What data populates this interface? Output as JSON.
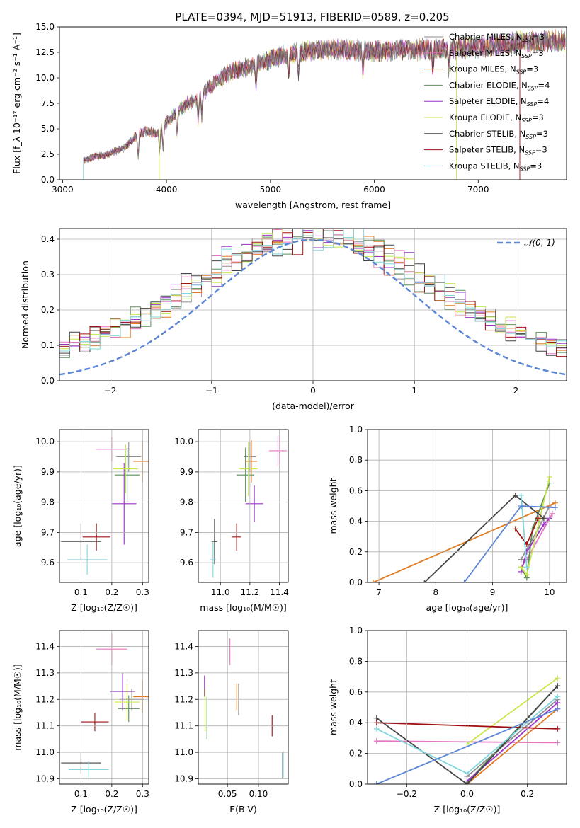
{
  "figure_title": "PLATE=0394, MJD=51913, FIBERID=0589, z=0.205",
  "colors": {
    "Chabrier MILES": "#8c8c8c",
    "Salpeter MILES": "#e377c2",
    "Kroupa MILES": "#e07b22",
    "Chabrier ELODIE": "#5b8f5b",
    "Salpeter ELODIE": "#9b30c8",
    "Kroupa ELODIE": "#c8e84a",
    "Chabrier STELIB": "#444444",
    "Salpeter STELIB": "#a01010",
    "Kroupa STELIB": "#7fd6dc",
    "Normal": "#5b86d6"
  },
  "chart_data": [
    {
      "id": "spectrum",
      "type": "line",
      "title": "PLATE=0394, MJD=51913, FIBERID=0589, z=0.205",
      "xlabel": "wavelength [Angstrom, rest frame]",
      "ylabel": "Flux [f_λ 10⁻¹⁷ erg cm⁻² s⁻¹ A⁻¹]",
      "xlim": [
        2970,
        7850
      ],
      "ylim": [
        0,
        15
      ],
      "xticks": [
        "3000",
        "4000",
        "5000",
        "6000",
        "7000"
      ],
      "yticks": [
        "0.0",
        "2.5",
        "5.0",
        "7.5",
        "10.0",
        "12.5",
        "15.0"
      ],
      "grid": false,
      "legend_position": "right",
      "legend": [
        "Chabrier MILES, N_SSP=3",
        "Salpeter MILES, N_SSP=3",
        "Kroupa MILES, N_SSP=3",
        "Chabrier ELODIE, N_SSP=4",
        "Salpeter ELODIE, N_SSP=4",
        "Kroupa ELODIE, N_SSP=3",
        "Chabrier STELIB, N_SSP=3",
        "Salpeter STELIB, N_SSP=3",
        "Kroupa STELIB, N_SSP=3"
      ],
      "continuum": {
        "x": [
          3200,
          3300,
          3400,
          3500,
          3600,
          3700,
          3800,
          3900,
          4000,
          4100,
          4200,
          4300,
          4400,
          4600,
          4800,
          5000,
          5200,
          5400,
          5600,
          5800,
          6000,
          6200,
          6400,
          6600,
          6800,
          7000,
          7200,
          7400,
          7800
        ],
        "y": [
          1.8,
          2.3,
          2.4,
          2.8,
          3.2,
          4.2,
          4.8,
          4.5,
          5.6,
          6.7,
          7.5,
          7.9,
          9.0,
          10.5,
          11.1,
          11.9,
          12.4,
          12.7,
          12.8,
          12.7,
          12.6,
          12.7,
          12.8,
          12.8,
          12.9,
          13.0,
          13.2,
          13.5,
          13.6
        ]
      }
    },
    {
      "id": "residuals",
      "type": "step-histogram",
      "xlabel": "(data-model)/error",
      "ylabel": "Normed distribution",
      "xlim": [
        -2.5,
        2.5
      ],
      "ylim": [
        0,
        0.43
      ],
      "xticks": [
        "−2",
        "−1",
        "0",
        "1",
        "2"
      ],
      "yticks": [
        "0.0",
        "0.1",
        "0.2",
        "0.3",
        "0.4"
      ],
      "grid": true,
      "legend": [
        "𝒩(0, 1)"
      ],
      "legend_position": "top-right",
      "bin_width": 0.1
    },
    {
      "id": "Z_age",
      "type": "errorbar",
      "xlabel": "Z [log₁₀(Z/Z☉)]",
      "ylabel": "age  [log₁₀(age/yr)]",
      "xlim": [
        0.03,
        0.32
      ],
      "ylim": [
        9.535,
        10.04
      ],
      "xticks": [
        "0.1",
        "0.2",
        "0.3"
      ],
      "yticks": [
        "9.6",
        "9.7",
        "9.8",
        "9.9",
        "10.0"
      ],
      "grid": true,
      "points": [
        {
          "model": "Chabrier MILES",
          "x": 0.255,
          "y": 9.95,
          "xerr": 0.04,
          "yerr": 0.05
        },
        {
          "model": "Salpeter MILES",
          "x": 0.2,
          "y": 9.975,
          "xerr": 0.05,
          "yerr": 0.04
        },
        {
          "model": "Kroupa MILES",
          "x": 0.3,
          "y": 9.935,
          "xerr": 0.03,
          "yerr": 0.07
        },
        {
          "model": "Chabrier ELODIE",
          "x": 0.25,
          "y": 9.89,
          "xerr": 0.04,
          "yerr": 0.09
        },
        {
          "model": "Salpeter ELODIE",
          "x": 0.24,
          "y": 9.795,
          "xerr": 0.04,
          "yerr": 0.135
        },
        {
          "model": "Kroupa ELODIE",
          "x": 0.245,
          "y": 9.91,
          "xerr": 0.04,
          "yerr": 0.08
        },
        {
          "model": "Chabrier STELIB",
          "x": 0.1,
          "y": 9.67,
          "xerr": 0.065,
          "yerr": 0.06
        },
        {
          "model": "Salpeter STELIB",
          "x": 0.15,
          "y": 9.685,
          "xerr": 0.045,
          "yerr": 0.045
        },
        {
          "model": "Kroupa STELIB",
          "x": 0.12,
          "y": 9.61,
          "xerr": 0.065,
          "yerr": 0.05
        }
      ]
    },
    {
      "id": "mass_age",
      "type": "errorbar",
      "xlabel": "mass [log₁₀(M/M☉)]",
      "ylabel": "",
      "xlim": [
        10.85,
        11.46
      ],
      "ylim": [
        9.535,
        10.04
      ],
      "xticks": [
        "11.0",
        "11.2",
        "11.4"
      ],
      "yticks": [
        "9.6",
        "9.7",
        "9.8",
        "9.9",
        "10.0"
      ],
      "grid": true,
      "points": [
        {
          "model": "Chabrier MILES",
          "x": 11.2,
          "y": 9.95,
          "xerr": 0.04,
          "yerr": 0.05
        },
        {
          "model": "Salpeter MILES",
          "x": 11.39,
          "y": 9.97,
          "xerr": 0.06,
          "yerr": 0.05
        },
        {
          "model": "Kroupa MILES",
          "x": 11.21,
          "y": 9.935,
          "xerr": 0.04,
          "yerr": 0.07
        },
        {
          "model": "Chabrier ELODIE",
          "x": 11.17,
          "y": 9.89,
          "xerr": 0.06,
          "yerr": 0.09
        },
        {
          "model": "Salpeter ELODIE",
          "x": 11.23,
          "y": 9.795,
          "xerr": 0.06,
          "yerr": 0.06
        },
        {
          "model": "Kroupa ELODIE",
          "x": 11.19,
          "y": 9.91,
          "xerr": 0.06,
          "yerr": 0.09
        },
        {
          "model": "Chabrier STELIB",
          "x": 10.96,
          "y": 9.67,
          "xerr": 0.02,
          "yerr": 0.075
        },
        {
          "model": "Salpeter STELIB",
          "x": 11.11,
          "y": 9.685,
          "xerr": 0.03,
          "yerr": 0.045
        },
        {
          "model": "Kroupa STELIB",
          "x": 10.95,
          "y": 9.61,
          "xerr": 0.02,
          "yerr": 0.06
        }
      ]
    },
    {
      "id": "age_weight",
      "type": "line",
      "xlabel": "age  [log₁₀(age/yr)]",
      "ylabel": "mass weight",
      "xlim": [
        6.8,
        10.3
      ],
      "ylim": [
        0,
        1
      ],
      "xticks": [
        "7",
        "8",
        "9",
        "10"
      ],
      "yticks": [
        "0.0",
        "0.2",
        "0.4",
        "0.6",
        "0.8",
        "1.0"
      ],
      "grid": true,
      "series": [
        {
          "model": "Chabrier MILES",
          "x": [
            9.5,
            9.8,
            10.0
          ],
          "y": [
            0.15,
            0.35,
            0.5
          ]
        },
        {
          "model": "Salpeter MILES",
          "x": [
            9.5,
            9.6,
            10.05
          ],
          "y": [
            0.1,
            0.15,
            0.45
          ]
        },
        {
          "model": "Kroupa MILES",
          "x": [
            6.9,
            10.1
          ],
          "y": [
            0.0,
            0.52
          ]
        },
        {
          "model": "Chabrier ELODIE",
          "x": [
            9.5,
            9.6,
            9.7,
            10.0
          ],
          "y": [
            0.1,
            0.03,
            0.35,
            0.65
          ]
        },
        {
          "model": "Salpeter ELODIE",
          "x": [
            9.5,
            9.6,
            9.9,
            10.0
          ],
          "y": [
            0.07,
            0.2,
            0.38,
            0.42
          ]
        },
        {
          "model": "Kroupa ELODIE",
          "x": [
            9.5,
            9.6,
            10.0
          ],
          "y": [
            0.1,
            0.05,
            0.69
          ]
        },
        {
          "model": "Chabrier STELIB",
          "x": [
            7.8,
            9.4,
            9.9
          ],
          "y": [
            0.0,
            0.57,
            0.42
          ]
        },
        {
          "model": "Salpeter STELIB",
          "x": [
            9.4,
            9.6,
            9.8
          ],
          "y": [
            0.35,
            0.25,
            0.42
          ]
        },
        {
          "model": "Kroupa STELIB",
          "x": [
            9.5,
            9.6
          ],
          "y": [
            0.57,
            0.1
          ]
        },
        {
          "model": "Normal",
          "x": [
            8.5,
            9.5,
            10.1
          ],
          "y": [
            0.0,
            0.5,
            0.49
          ]
        }
      ]
    },
    {
      "id": "Z_mass",
      "type": "errorbar",
      "xlabel": "Z [log₁₀(Z/Z☉)]",
      "ylabel": "mass [log₁₀(M/M☉)]",
      "xlim": [
        0.03,
        0.32
      ],
      "ylim": [
        10.88,
        11.46
      ],
      "xticks": [
        "0.1",
        "0.2",
        "0.3"
      ],
      "yticks": [
        "10.9",
        "11.0",
        "11.1",
        "11.2",
        "11.3",
        "11.4"
      ],
      "grid": true,
      "points": [
        {
          "model": "Chabrier MILES",
          "x": 0.265,
          "y": 11.2,
          "xerr": 0.04,
          "yerr": 0.04
        },
        {
          "model": "Salpeter MILES",
          "x": 0.2,
          "y": 11.39,
          "xerr": 0.05,
          "yerr": 0.06
        },
        {
          "model": "Kroupa MILES",
          "x": 0.3,
          "y": 11.21,
          "xerr": 0.03,
          "yerr": 0.06
        },
        {
          "model": "Chabrier ELODIE",
          "x": 0.255,
          "y": 11.165,
          "xerr": 0.035,
          "yerr": 0.05
        },
        {
          "model": "Salpeter ELODIE",
          "x": 0.235,
          "y": 11.23,
          "xerr": 0.04,
          "yerr": 0.07
        },
        {
          "model": "Kroupa ELODIE",
          "x": 0.25,
          "y": 11.19,
          "xerr": 0.04,
          "yerr": 0.07
        },
        {
          "model": "Chabrier STELIB",
          "x": 0.1,
          "y": 10.96,
          "xerr": 0.065,
          "yerr": 0.04
        },
        {
          "model": "Salpeter STELIB",
          "x": 0.145,
          "y": 11.115,
          "xerr": 0.045,
          "yerr": 0.035
        },
        {
          "model": "Kroupa STELIB",
          "x": 0.125,
          "y": 10.935,
          "xerr": 0.065,
          "yerr": 0.03
        }
      ]
    },
    {
      "id": "ebv_mass",
      "type": "errorbar",
      "xlabel": "E(B-V)",
      "ylabel": "",
      "xlim": [
        0.003,
        0.148
      ],
      "ylim": [
        10.88,
        11.46
      ],
      "xticks": [
        "0.05",
        "0.10"
      ],
      "yticks": [
        "10.9",
        "11.0",
        "11.1",
        "11.2",
        "11.3",
        "11.4"
      ],
      "grid": true,
      "points": [
        {
          "model": "Chabrier MILES",
          "x": 0.068,
          "y": 11.2,
          "xerr": 0,
          "yerr": 0.06
        },
        {
          "model": "Salpeter MILES",
          "x": 0.054,
          "y": 11.38,
          "xerr": 0,
          "yerr": 0.05
        },
        {
          "model": "Kroupa MILES",
          "x": 0.065,
          "y": 11.21,
          "xerr": 0,
          "yerr": 0.05
        },
        {
          "model": "Chabrier ELODIE",
          "x": 0.017,
          "y": 11.13,
          "xerr": 0,
          "yerr": 0.08
        },
        {
          "model": "Salpeter ELODIE",
          "x": 0.013,
          "y": 11.25,
          "xerr": 0,
          "yerr": 0.04
        },
        {
          "model": "Kroupa ELODIE",
          "x": 0.014,
          "y": 11.16,
          "xerr": 0,
          "yerr": 0.08
        },
        {
          "model": "Chabrier STELIB",
          "x": 0.139,
          "y": 10.95,
          "xerr": 0,
          "yerr": 0.05
        },
        {
          "model": "Salpeter STELIB",
          "x": 0.122,
          "y": 11.1,
          "xerr": 0,
          "yerr": 0.04
        },
        {
          "model": "Kroupa STELIB",
          "x": 0.14,
          "y": 10.955,
          "xerr": 0,
          "yerr": 0.05
        }
      ]
    },
    {
      "id": "Z_weight",
      "type": "line",
      "xlabel": "Z [log₁₀(Z/Z☉)]",
      "ylabel": "mass weight",
      "xlim": [
        -0.33,
        0.33
      ],
      "ylim": [
        0,
        1
      ],
      "xticks": [
        "−0.2",
        "0.0",
        "0.2"
      ],
      "yticks": [
        "0.0",
        "0.2",
        "0.4",
        "0.6",
        "0.8",
        "1.0"
      ],
      "grid": true,
      "series": [
        {
          "model": "Chabrier MILES",
          "x": [
            0.0,
            0.3
          ],
          "y": [
            0.05,
            0.55
          ]
        },
        {
          "model": "Salpeter MILES",
          "x": [
            -0.3,
            0.3
          ],
          "y": [
            0.28,
            0.27
          ]
        },
        {
          "model": "Kroupa MILES",
          "x": [
            0.0,
            0.3
          ],
          "y": [
            0.0,
            0.49
          ]
        },
        {
          "model": "Chabrier ELODIE",
          "x": [
            0.0,
            0.3
          ],
          "y": [
            0.01,
            0.64
          ]
        },
        {
          "model": "Salpeter ELODIE",
          "x": [
            0.0,
            0.3
          ],
          "y": [
            0.02,
            0.53
          ]
        },
        {
          "model": "Kroupa ELODIE",
          "x": [
            0.0,
            0.3
          ],
          "y": [
            0.26,
            0.69
          ]
        },
        {
          "model": "Chabrier STELIB",
          "x": [
            -0.3,
            0.0,
            0.3
          ],
          "y": [
            0.43,
            0.0,
            0.64
          ]
        },
        {
          "model": "Salpeter STELIB",
          "x": [
            -0.3,
            0.3
          ],
          "y": [
            0.4,
            0.36
          ]
        },
        {
          "model": "Kroupa STELIB",
          "x": [
            -0.3,
            0.0,
            0.3
          ],
          "y": [
            0.36,
            0.07,
            0.57
          ]
        },
        {
          "model": "Normal",
          "x": [
            -0.3,
            0.3
          ],
          "y": [
            0.0,
            0.49
          ]
        }
      ]
    }
  ]
}
